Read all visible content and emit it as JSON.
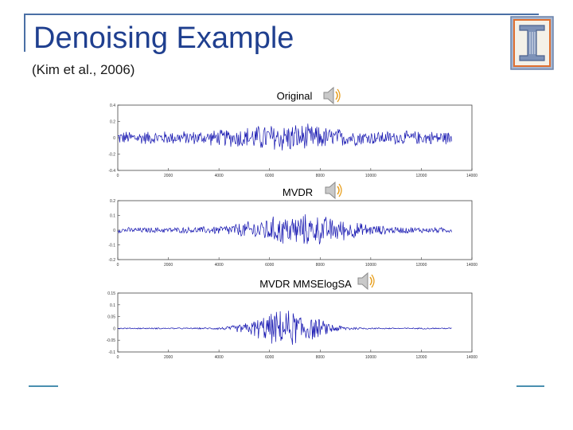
{
  "slide": {
    "title": "Denoising Example",
    "subtitle": "(Kim et al., 2006)",
    "accent_color": "#1f3f8f",
    "logo_icon": "university-pillar-logo",
    "audio_icon": "speaker-icon"
  },
  "chart_data": [
    {
      "type": "line",
      "title": "Original",
      "x_range": [
        0,
        14000
      ],
      "ylim": [
        -0.4,
        0.4
      ],
      "x_ticks": [
        0,
        2000,
        4000,
        6000,
        8000,
        10000,
        12000,
        14000
      ],
      "y_ticks": [
        -0.4,
        -0.2,
        0,
        0.2,
        0.4
      ],
      "y_tick_labels": [
        "-0.4",
        "-0.2",
        "0",
        "0.2",
        "0.4"
      ],
      "signal_length": 13200,
      "color": "#1515b0",
      "amplitude_profile": {
        "noise_floor": 0.09,
        "peak": 0.2,
        "peak_center": 6600,
        "peak_width": 2000
      },
      "grid": false
    },
    {
      "type": "line",
      "title": "MVDR",
      "x_range": [
        0,
        14000
      ],
      "ylim": [
        -0.2,
        0.2
      ],
      "x_ticks": [
        0,
        2000,
        4000,
        6000,
        8000,
        10000,
        12000,
        14000
      ],
      "y_ticks": [
        -0.2,
        -0.1,
        0,
        0.1,
        0.2
      ],
      "y_tick_labels": [
        "-0.2",
        "-0.1",
        "0",
        "0.1",
        "0.2"
      ],
      "signal_length": 13200,
      "color": "#1515b0",
      "amplitude_profile": {
        "noise_floor": 0.02,
        "peak": 0.12,
        "peak_center": 7200,
        "peak_width": 2300
      },
      "grid": false
    },
    {
      "type": "line",
      "title": "MVDR MMSElogSA",
      "x_range": [
        0,
        14000
      ],
      "ylim": [
        -0.1,
        0.15
      ],
      "x_ticks": [
        0,
        2000,
        4000,
        6000,
        8000,
        10000,
        12000,
        14000
      ],
      "y_ticks": [
        -0.1,
        -0.05,
        0,
        0.05,
        0.1,
        0.15
      ],
      "y_tick_labels": [
        "-0.1",
        "-0.05",
        "0",
        "0.05",
        "0.1",
        "0.15"
      ],
      "signal_length": 13200,
      "color": "#1515b0",
      "amplitude_profile": {
        "noise_floor": 0.003,
        "peak": 0.085,
        "peak_center": 6700,
        "peak_width": 1500
      },
      "grid": false
    }
  ]
}
